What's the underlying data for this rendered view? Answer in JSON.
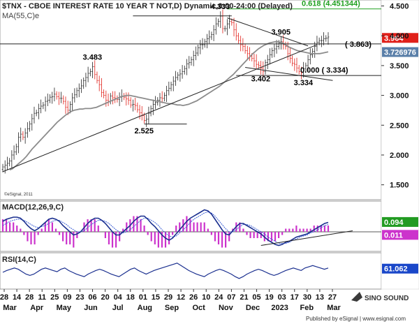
{
  "chart_data": {
    "type": "candlestick",
    "title": "$TNX - CBOE INTEREST RATE 10 YEAR T NOT,D) Dynamic,0:00-24:00 (Delayed)",
    "ma_label": "MA(55,C)e",
    "copyright": "©eSignal, 2011",
    "price": {
      "ylim": [
        1.25,
        4.6
      ],
      "yticks": [
        "1.500",
        "2.000",
        "2.500",
        "3.000",
        "3.500",
        "4.000",
        "4.500"
      ],
      "ytick_values": [
        1.5,
        2.0,
        2.5,
        3.0,
        3.5,
        4.0,
        4.5
      ],
      "close_series": [
        1.8,
        1.83,
        1.86,
        1.9,
        2.0,
        2.05,
        2.14,
        2.3,
        2.35,
        2.3,
        2.37,
        2.44,
        2.52,
        2.61,
        2.7,
        2.71,
        2.78,
        2.82,
        2.84,
        2.9,
        2.92,
        2.97,
        2.98,
        3.02,
        2.98,
        2.95,
        2.95,
        2.9,
        2.8,
        2.75,
        2.85,
        2.96,
        3.01,
        3.08,
        3.12,
        3.16,
        3.25,
        3.3,
        3.37,
        3.4,
        3.48,
        3.35,
        3.25,
        3.18,
        3.05,
        3.0,
        2.92,
        2.9,
        2.99,
        2.96,
        2.95,
        2.93,
        2.97,
        2.99,
        2.97,
        2.94,
        2.92,
        2.84,
        2.85,
        2.83,
        2.76,
        2.71,
        2.66,
        2.58,
        2.6,
        2.7,
        2.78,
        2.85,
        2.88,
        2.92,
        2.96,
        2.95,
        3.0,
        3.08,
        3.12,
        3.18,
        3.24,
        3.3,
        3.34,
        3.36,
        3.4,
        3.45,
        3.53,
        3.55,
        3.6,
        3.67,
        3.71,
        3.8,
        3.85,
        3.85,
        3.9,
        3.95,
        3.98,
        4.02,
        4.1,
        4.2,
        4.24,
        4.33,
        4.12,
        4.12,
        4.2,
        4.24,
        4.22,
        4.1,
        4.0,
        3.92,
        3.85,
        3.82,
        3.75,
        3.7,
        3.66,
        3.62,
        3.58,
        3.52,
        3.5,
        3.46,
        3.4,
        3.55,
        3.6,
        3.68,
        3.75,
        3.78,
        3.82,
        3.88,
        3.9,
        3.85,
        3.82,
        3.7,
        3.62,
        3.54,
        3.52,
        3.46,
        3.4,
        3.38,
        3.45,
        3.5,
        3.6,
        3.68,
        3.74,
        3.82,
        3.89,
        3.92,
        3.92,
        3.95,
        3.96,
        3.98
      ],
      "ma_series": [
        1.75,
        1.77,
        1.81,
        1.85,
        1.89,
        1.93,
        1.98,
        2.04,
        2.1,
        2.15,
        2.2,
        2.25,
        2.3,
        2.35,
        2.4,
        2.45,
        2.5,
        2.55,
        2.59,
        2.63,
        2.67,
        2.7,
        2.73,
        2.75,
        2.76,
        2.77,
        2.77,
        2.78,
        2.78,
        2.78,
        2.79,
        2.8,
        2.82,
        2.84,
        2.86,
        2.88,
        2.9,
        2.92,
        2.94,
        2.96,
        2.98,
        2.99,
        3.0,
        3.0,
        2.99,
        2.98,
        2.97,
        2.96,
        2.95,
        2.94,
        2.93,
        2.92,
        2.91,
        2.9,
        2.89,
        2.88,
        2.87,
        2.86,
        2.86,
        2.85,
        2.84,
        2.84,
        2.83,
        2.84,
        2.85,
        2.87,
        2.89,
        2.91,
        2.94,
        2.97,
        3.0,
        3.03,
        3.06,
        3.09,
        3.12,
        3.15,
        3.19,
        3.23,
        3.27,
        3.31,
        3.35,
        3.4,
        3.45,
        3.5,
        3.55,
        3.6,
        3.65,
        3.7,
        3.74,
        3.78,
        3.81,
        3.84,
        3.86,
        3.88,
        3.89,
        3.9,
        3.9,
        3.89,
        3.87,
        3.84,
        3.81,
        3.79,
        3.77,
        3.75,
        3.74,
        3.73,
        3.72,
        3.71,
        3.7,
        3.7,
        3.7,
        3.7,
        3.71,
        3.72,
        3.73
      ],
      "current_price": "3.964",
      "ma_value": "3.726976",
      "peak_labels": [
        {
          "label": "4.333",
          "x_index": 97,
          "value": 4.333
        },
        {
          "label": "3.483",
          "x_index": 40,
          "value": 3.483
        },
        {
          "label": "3.905",
          "x_index": 124,
          "value": 3.905
        },
        {
          "label": "3.402",
          "x_index": 115,
          "value": 3.402
        },
        {
          "label": "3.334",
          "x_index": 134,
          "value": 3.334
        },
        {
          "label": "2.525",
          "x_index": 63,
          "value": 2.525
        }
      ],
      "fib_labels": [
        {
          "label": "0.618 (4.451344)",
          "value": 4.451344
        },
        {
          "label": "( 3.863)",
          "value": 3.863
        },
        {
          "label": "0.000 ( 3.334)",
          "value": 3.334
        }
      ]
    },
    "macd": {
      "label": "MACD(12,26,9,C)",
      "value": "0.094",
      "signal_value": "0.011",
      "macd_series": [
        0.1,
        0.12,
        0.13,
        0.14,
        0.14,
        0.13,
        0.1,
        0.06,
        0.03,
        0.01,
        0.03,
        0.06,
        0.09,
        0.12,
        0.13,
        0.12,
        0.1,
        0.06,
        0.03,
        0.0,
        -0.03,
        -0.02,
        0.0,
        0.04,
        0.08,
        0.11,
        0.13,
        0.13,
        0.11,
        0.08,
        0.04,
        0.0,
        -0.03,
        -0.03,
        0.0,
        0.03,
        0.06,
        0.1,
        0.13,
        0.15,
        0.15,
        0.12,
        0.08,
        0.05,
        0.01,
        -0.03,
        -0.06,
        -0.08,
        -0.06,
        -0.02,
        0.02,
        0.06,
        0.1,
        0.13,
        0.15,
        0.17,
        0.19,
        0.21,
        0.2,
        0.17,
        0.12,
        0.07,
        0.02,
        -0.02,
        -0.03,
        0.01,
        0.05,
        0.08,
        0.08,
        0.06,
        0.04,
        0.02,
        0.0,
        -0.02,
        -0.05,
        -0.08,
        -0.1,
        -0.12,
        -0.13,
        -0.12,
        -0.1,
        -0.09,
        -0.07,
        -0.05,
        -0.04,
        -0.03,
        -0.02,
        0.0,
        0.02,
        0.04,
        0.06,
        0.08,
        0.09
      ],
      "signal_series": [
        0.06,
        0.08,
        0.1,
        0.11,
        0.12,
        0.12,
        0.11,
        0.09,
        0.07,
        0.05,
        0.04,
        0.05,
        0.06,
        0.08,
        0.1,
        0.11,
        0.11,
        0.09,
        0.07,
        0.04,
        0.02,
        0.0,
        0.0,
        0.01,
        0.04,
        0.07,
        0.09,
        0.11,
        0.11,
        0.1,
        0.08,
        0.05,
        0.02,
        0.0,
        -0.01,
        0.0,
        0.02,
        0.05,
        0.08,
        0.11,
        0.13,
        0.13,
        0.11,
        0.09,
        0.06,
        0.02,
        -0.01,
        -0.04,
        -0.05,
        -0.04,
        -0.01,
        0.02,
        0.05,
        0.09,
        0.12,
        0.14,
        0.16,
        0.18,
        0.19,
        0.18,
        0.15,
        0.11,
        0.07,
        0.03,
        0.0,
        0.0,
        0.02,
        0.05,
        0.07,
        0.07,
        0.06,
        0.04,
        0.02,
        0.0,
        -0.02,
        -0.05,
        -0.07,
        -0.09,
        -0.11,
        -0.11,
        -0.11,
        -0.1,
        -0.08,
        -0.07,
        -0.05,
        -0.04,
        -0.03,
        -0.01,
        0.0,
        0.02,
        0.04,
        0.06,
        0.07
      ]
    },
    "rsi": {
      "label": "RSI(14,C)",
      "value": "61.062",
      "rsi_series": [
        55,
        58,
        60,
        62,
        60,
        56,
        52,
        50,
        52,
        56,
        60,
        62,
        60,
        58,
        56,
        60,
        62,
        58,
        55,
        52,
        50,
        48,
        52,
        55,
        58,
        60,
        58,
        55,
        52,
        50,
        48,
        52,
        56,
        60,
        62,
        58,
        55,
        52,
        55,
        58,
        60,
        62,
        64,
        66,
        68,
        70,
        66,
        62,
        58,
        55,
        52,
        50,
        48,
        52,
        55,
        58,
        60,
        58,
        55,
        52,
        48,
        45,
        48,
        52,
        55,
        58,
        60,
        58,
        55,
        52,
        50,
        52,
        55,
        58,
        60,
        62,
        60,
        58,
        62,
        64,
        66,
        64,
        62,
        60,
        62
      ]
    },
    "x_axis": {
      "days": [
        "28",
        "14",
        "28",
        "11",
        "25",
        "09",
        "23",
        "06",
        "20",
        "04",
        "18",
        "01",
        "15",
        "29",
        "12",
        "26",
        "10",
        "24",
        "07",
        "21",
        "05",
        "19",
        "03",
        "17",
        "30",
        "13",
        "27"
      ],
      "months": [
        "Mar",
        "Apr",
        "May",
        "Jun",
        "Jul",
        "Aug",
        "Sep",
        "Oct",
        "Nov",
        "Dec",
        "2023",
        "Feb",
        "Mar"
      ],
      "year_marker": "2023"
    },
    "footer": "Published by eSignal | www.esignal.com",
    "logo": "SINO SOUND",
    "colors": {
      "up": "#222222",
      "down": "#e0201a",
      "ma": "#8c8c8c",
      "macd": "#1a2f8f",
      "signal": "#3c5fd6",
      "histogram": "#cc33cc",
      "fib": "#20a020",
      "rsi": "#1a2f8f",
      "price_badge": "#e0201a",
      "ma_badge": "#5a7fa8",
      "macd_badge": "#229b22",
      "signal_badge": "#cc33cc",
      "rsi_badge": "#1a47c9"
    }
  }
}
